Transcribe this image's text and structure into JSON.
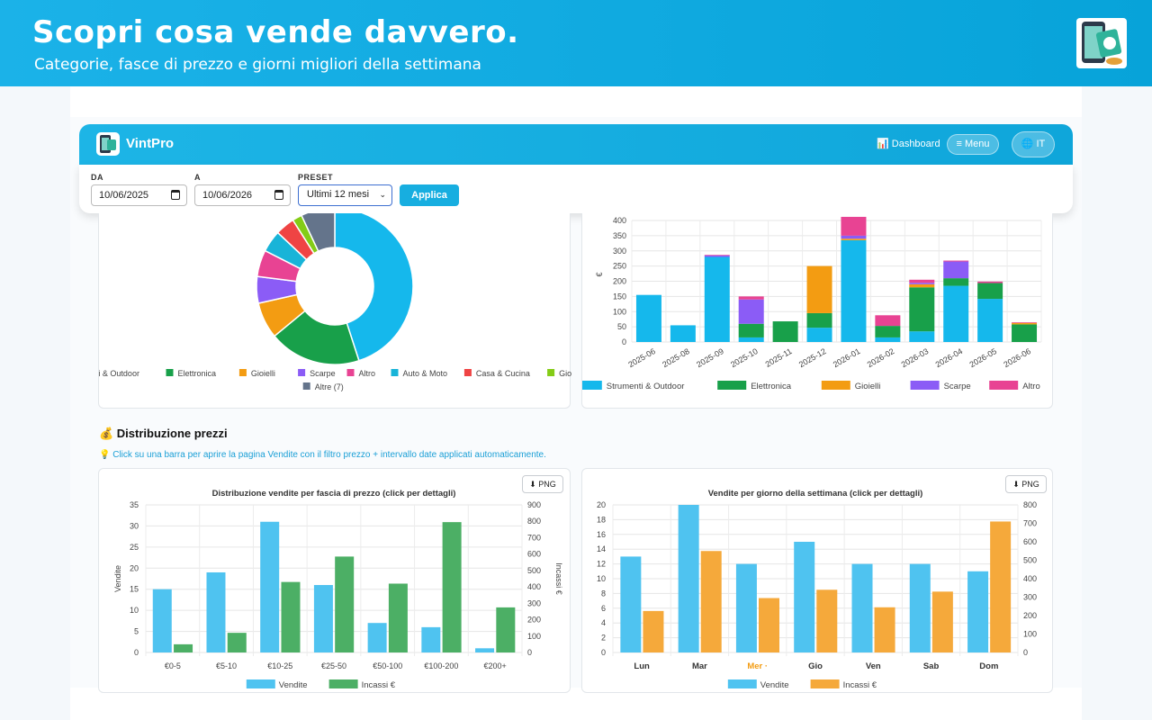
{
  "hero": {
    "title": "Scopri cosa vende davvero.",
    "subtitle": "Categorie, fasce di prezzo e giorni migliori della settimana"
  },
  "app": {
    "brand": "VintPro",
    "nav_dashboard": "📊 Dashboard",
    "nav_menu": "≡ Menu",
    "nav_lang": "🌐 IT"
  },
  "filters": {
    "from_label": "DA",
    "from_value": "10/06/2025",
    "to_label": "A",
    "to_value": "10/06/2026",
    "preset_label": "PRESET",
    "preset_value": "Ultimi 12 mesi",
    "apply_label": "Applica"
  },
  "section": {
    "title": "💰 Distribuzione prezzi",
    "hint": "💡 Click su una barra per aprire la pagina Vendite con il filtro prezzo + intervallo date applicati automaticamente."
  },
  "buttons": {
    "png": "⬇ PNG"
  },
  "colors": {
    "sky": "#15b8ec",
    "green": "#18a04a",
    "orange": "#f39c12",
    "purple": "#8b5cf6",
    "pink": "#e84393",
    "cyan": "#18b4d8",
    "red": "#ef4444",
    "lime": "#84cc16",
    "slate": "#64748b"
  },
  "chart_data": [
    {
      "type": "pie",
      "variant": "donut",
      "labels": [
        "Strumenti & Outdoor",
        "Elettronica",
        "Gioielli",
        "Scarpe",
        "Altro",
        "Auto & Moto",
        "Casa & Cucina",
        "Giocattoli",
        "Altre (7)"
      ],
      "values": [
        45,
        19,
        7.5,
        5.5,
        5.5,
        4.5,
        4,
        2,
        7
      ],
      "colors": [
        "#15b8ec",
        "#18a04a",
        "#f39c12",
        "#8b5cf6",
        "#e84393",
        "#18b4d8",
        "#ef4444",
        "#84cc16",
        "#64748b"
      ],
      "legend": "bottom"
    },
    {
      "type": "bar",
      "stacked": true,
      "categories": [
        "2025-06",
        "2025-08",
        "2025-09",
        "2025-10",
        "2025-11",
        "2025-12",
        "2026-01",
        "2026-02",
        "2026-03",
        "2026-04",
        "2026-05",
        "2026-06"
      ],
      "series": [
        {
          "name": "Strumenti & Outdoor",
          "color": "#15b8ec",
          "values": [
            155,
            55,
            280,
            15,
            0,
            47,
            335,
            15,
            35,
            185,
            142,
            0
          ]
        },
        {
          "name": "Elettronica",
          "color": "#18a04a",
          "values": [
            0,
            0,
            0,
            45,
            68,
            48,
            0,
            38,
            145,
            25,
            52,
            58
          ]
        },
        {
          "name": "Gioielli",
          "color": "#f39c12",
          "values": [
            0,
            0,
            0,
            0,
            0,
            155,
            5,
            0,
            10,
            0,
            0,
            5
          ]
        },
        {
          "name": "Scarpe",
          "color": "#8b5cf6",
          "values": [
            0,
            0,
            5,
            80,
            0,
            0,
            10,
            0,
            5,
            55,
            0,
            0
          ]
        },
        {
          "name": "Altro",
          "color": "#e84393",
          "values": [
            0,
            0,
            2,
            10,
            0,
            0,
            62,
            35,
            10,
            3,
            5,
            2
          ]
        }
      ],
      "ylabel": "€",
      "ylim": [
        0,
        400
      ],
      "yticks": [
        "0",
        "50",
        "100",
        "150",
        "200",
        "250",
        "300",
        "350",
        "400"
      ],
      "legend": "bottom"
    },
    {
      "type": "bar",
      "title": "Distribuzione vendite per fascia di prezzo (click per dettagli)",
      "categories": [
        "€0-5",
        "€5-10",
        "€10-25",
        "€25-50",
        "€50-100",
        "€100-200",
        "€200+"
      ],
      "series": [
        {
          "name": "Vendite",
          "color": "#4fc3f0",
          "axis": "left",
          "values": [
            15,
            19,
            31,
            16,
            7,
            6,
            1
          ]
        },
        {
          "name": "Incassi €",
          "color": "#4caf65",
          "axis": "right",
          "values": [
            50,
            120,
            430,
            585,
            420,
            795,
            275
          ]
        }
      ],
      "ylabel": "Vendite",
      "ylabel_right": "Incassi €",
      "ylim": [
        0,
        35
      ],
      "ylim_right": [
        0,
        900
      ],
      "yticks": [
        "0",
        "5",
        "10",
        "15",
        "20",
        "25",
        "30",
        "35"
      ],
      "yticks_right": [
        "0",
        "100",
        "200",
        "300",
        "400",
        "500",
        "600",
        "700",
        "800",
        "900"
      ],
      "legend": "bottom"
    },
    {
      "type": "bar",
      "title": "Vendite per giorno della settimana (click per dettagli)",
      "categories": [
        "Lun",
        "Mar",
        "Mer ·",
        "Gio",
        "Ven",
        "Sab",
        "Dom"
      ],
      "highlight_category": "Mer ·",
      "series": [
        {
          "name": "Vendite",
          "color": "#4fc3f0",
          "axis": "left",
          "values": [
            13,
            20,
            12,
            15,
            12,
            12,
            11
          ]
        },
        {
          "name": "Incassi €",
          "color": "#f5a93b",
          "axis": "right",
          "values": [
            225,
            550,
            295,
            340,
            245,
            330,
            710
          ]
        }
      ],
      "ylim": [
        0,
        20
      ],
      "ylim_right": [
        0,
        800
      ],
      "yticks": [
        "0",
        "2",
        "4",
        "6",
        "8",
        "10",
        "12",
        "14",
        "16",
        "18",
        "20"
      ],
      "yticks_right": [
        "0",
        "100",
        "200",
        "300",
        "400",
        "500",
        "600",
        "700",
        "800"
      ],
      "legend": "bottom"
    }
  ]
}
